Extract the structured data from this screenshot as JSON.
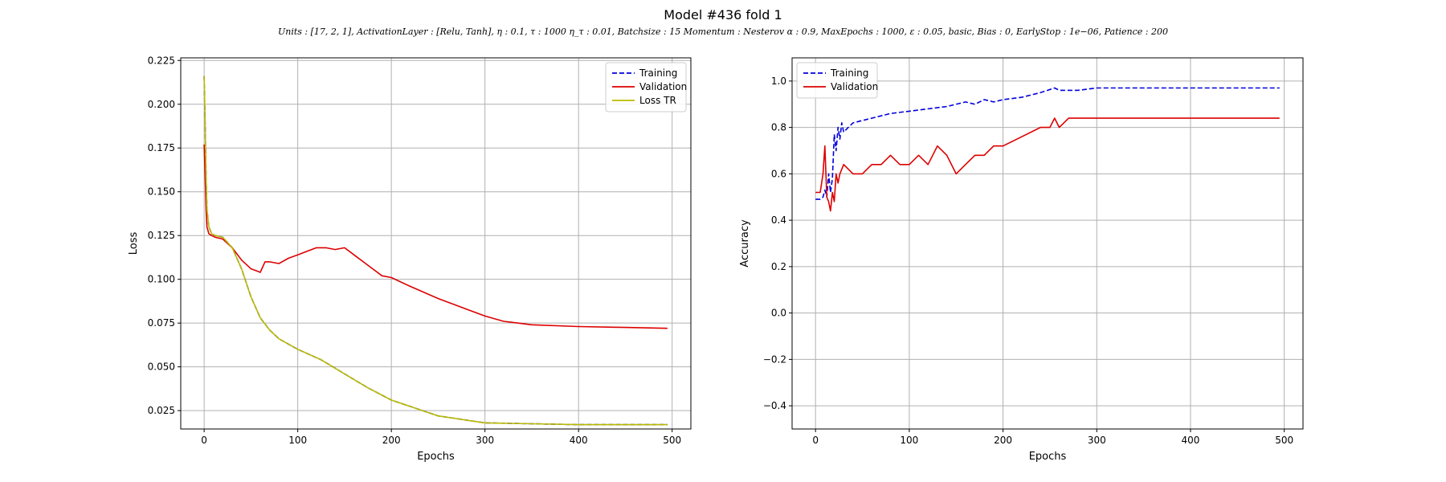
{
  "figure": {
    "title": "Model #436 fold 1",
    "subtitle": "Units : [17, 2, 1], ActivationLayer : [Relu, Tanh], η : 0.1, τ : 1000 η_τ : 0.01, Batchsize : 15 Momentum : Nesterov α : 0.9, MaxEpochs : 1000, ε : 0.05, basic, Bias : 0, EarlyStop : 1e−06, Patience : 200"
  },
  "colors": {
    "training": "#0000dd",
    "validation": "#dd0000",
    "loss_tr": "#bbbb00",
    "grid": "#b0b0b0"
  },
  "chart_data": [
    {
      "type": "line",
      "xlabel": "Epochs",
      "ylabel": "Loss",
      "xlim": [
        -25,
        520
      ],
      "ylim": [
        0.0145,
        0.2265
      ],
      "xticks": [
        0,
        100,
        200,
        300,
        400,
        500
      ],
      "yticks": [
        0.025,
        0.05,
        0.075,
        0.1,
        0.125,
        0.15,
        0.175,
        0.2,
        0.225
      ],
      "ytick_labels": [
        "0.025",
        "0.050",
        "0.075",
        "0.100",
        "0.125",
        "0.150",
        "0.175",
        "0.200",
        "0.225"
      ],
      "grid": true,
      "legend_position": "top-right",
      "series": [
        {
          "name": "Training",
          "style": "dashed",
          "color": "training",
          "x": [
            0,
            1,
            2,
            3,
            5,
            8,
            12,
            20,
            30,
            40,
            50,
            60,
            70,
            80,
            100,
            125,
            150,
            175,
            200,
            250,
            300,
            350,
            400,
            450,
            495
          ],
          "y": [
            0.216,
            0.19,
            0.16,
            0.14,
            0.13,
            0.126,
            0.125,
            0.124,
            0.118,
            0.106,
            0.09,
            0.078,
            0.071,
            0.066,
            0.06,
            0.054,
            0.046,
            0.038,
            0.031,
            0.022,
            0.018,
            0.0175,
            0.017,
            0.017,
            0.017
          ]
        },
        {
          "name": "Validation",
          "style": "solid",
          "color": "validation",
          "x": [
            0,
            1,
            2,
            3,
            5,
            8,
            12,
            20,
            30,
            40,
            50,
            55,
            60,
            65,
            70,
            80,
            90,
            100,
            110,
            120,
            130,
            140,
            150,
            160,
            170,
            180,
            190,
            200,
            220,
            250,
            280,
            300,
            320,
            350,
            400,
            450,
            495
          ],
          "y": [
            0.177,
            0.16,
            0.14,
            0.13,
            0.126,
            0.125,
            0.124,
            0.123,
            0.118,
            0.111,
            0.106,
            0.105,
            0.104,
            0.11,
            0.11,
            0.109,
            0.112,
            0.114,
            0.116,
            0.118,
            0.118,
            0.117,
            0.118,
            0.114,
            0.11,
            0.106,
            0.102,
            0.101,
            0.096,
            0.089,
            0.083,
            0.079,
            0.076,
            0.074,
            0.073,
            0.0725,
            0.072
          ]
        },
        {
          "name": "Loss TR",
          "style": "solid",
          "color": "loss_tr",
          "x": [
            0,
            1,
            2,
            3,
            5,
            8,
            12,
            20,
            30,
            40,
            50,
            60,
            70,
            80,
            100,
            125,
            150,
            175,
            200,
            250,
            300,
            350,
            400,
            450,
            495
          ],
          "y": [
            0.216,
            0.19,
            0.16,
            0.14,
            0.13,
            0.126,
            0.125,
            0.124,
            0.118,
            0.106,
            0.09,
            0.078,
            0.071,
            0.066,
            0.06,
            0.054,
            0.046,
            0.038,
            0.031,
            0.022,
            0.018,
            0.0175,
            0.017,
            0.017,
            0.017
          ]
        }
      ]
    },
    {
      "type": "line",
      "xlabel": "Epochs",
      "ylabel": "Accuracy",
      "xlim": [
        -25,
        520
      ],
      "ylim": [
        -0.5,
        1.1
      ],
      "xticks": [
        0,
        100,
        200,
        300,
        400,
        500
      ],
      "yticks": [
        -0.4,
        -0.2,
        0.0,
        0.2,
        0.4,
        0.6,
        0.8,
        1.0
      ],
      "ytick_labels": [
        "−0.4",
        "−0.2",
        "0.0",
        "0.2",
        "0.4",
        "0.6",
        "0.8",
        "1.0"
      ],
      "grid": true,
      "legend_position": "top-left",
      "series": [
        {
          "name": "Training",
          "style": "dashed",
          "color": "training",
          "x": [
            0,
            5,
            8,
            10,
            12,
            14,
            16,
            18,
            20,
            22,
            24,
            26,
            28,
            30,
            35,
            40,
            50,
            60,
            70,
            80,
            100,
            120,
            140,
            160,
            170,
            180,
            190,
            200,
            220,
            240,
            255,
            260,
            280,
            300,
            350,
            400,
            450,
            495
          ],
          "y": [
            0.49,
            0.49,
            0.5,
            0.53,
            0.5,
            0.6,
            0.52,
            0.58,
            0.77,
            0.7,
            0.8,
            0.75,
            0.82,
            0.78,
            0.8,
            0.82,
            0.83,
            0.84,
            0.85,
            0.86,
            0.87,
            0.88,
            0.89,
            0.91,
            0.9,
            0.92,
            0.91,
            0.92,
            0.93,
            0.95,
            0.97,
            0.96,
            0.96,
            0.97,
            0.97,
            0.97,
            0.97,
            0.97
          ]
        },
        {
          "name": "Validation",
          "style": "solid",
          "color": "validation",
          "x": [
            0,
            5,
            8,
            10,
            12,
            14,
            16,
            18,
            20,
            22,
            24,
            26,
            30,
            40,
            50,
            60,
            70,
            80,
            90,
            100,
            110,
            120,
            130,
            140,
            150,
            160,
            170,
            180,
            190,
            200,
            220,
            240,
            250,
            255,
            260,
            270,
            280,
            300,
            350,
            400,
            450,
            495
          ],
          "y": [
            0.52,
            0.52,
            0.6,
            0.72,
            0.5,
            0.48,
            0.44,
            0.52,
            0.48,
            0.6,
            0.56,
            0.6,
            0.64,
            0.6,
            0.6,
            0.64,
            0.64,
            0.68,
            0.64,
            0.64,
            0.68,
            0.64,
            0.72,
            0.68,
            0.6,
            0.64,
            0.68,
            0.68,
            0.72,
            0.72,
            0.76,
            0.8,
            0.8,
            0.84,
            0.8,
            0.84,
            0.84,
            0.84,
            0.84,
            0.84,
            0.84,
            0.84
          ]
        }
      ]
    }
  ]
}
